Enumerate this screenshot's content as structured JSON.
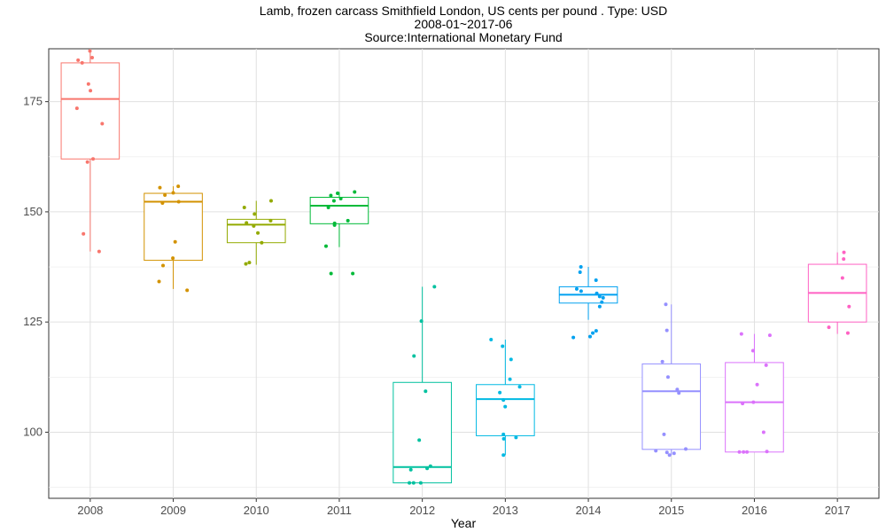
{
  "chart_data": {
    "type": "boxplot",
    "title_lines": [
      "Lamb, frozen carcass Smithfield London, US cents per pound . Type: USD",
      "2008-01~2017-06",
      "Source:International Monetary Fund"
    ],
    "xlabel": "Year",
    "ylabel": "",
    "ylim": [
      85,
      187
    ],
    "y_ticks": [
      100,
      125,
      150,
      175
    ],
    "grid": true,
    "categories": [
      "2008",
      "2009",
      "2010",
      "2011",
      "2012",
      "2013",
      "2014",
      "2015",
      "2016",
      "2017"
    ],
    "colors": [
      "#F8766D",
      "#D39200",
      "#93AA00",
      "#00BA38",
      "#00C19F",
      "#00B9E3",
      "#00A1F0",
      "#9590FF",
      "#DB72FB",
      "#FF61C3"
    ],
    "boxes": [
      {
        "year": "2008",
        "min": 141,
        "q1": 162,
        "median": 175.6,
        "q3": 183.8,
        "max": 186.5
      },
      {
        "year": "2009",
        "min": 132.5,
        "q1": 139,
        "median": 152.3,
        "q3": 154.2,
        "max": 155.8
      },
      {
        "year": "2010",
        "min": 138,
        "q1": 143,
        "median": 147.1,
        "q3": 148.3,
        "max": 152.5
      },
      {
        "year": "2011",
        "min": 142,
        "q1": 147.3,
        "median": 151.4,
        "q3": 153.3,
        "max": 154.5
      },
      {
        "year": "2012",
        "min": 88.5,
        "q1": 88.5,
        "median": 92.1,
        "q3": 111.3,
        "max": 133
      },
      {
        "year": "2013",
        "min": 94.8,
        "q1": 99.2,
        "median": 107.5,
        "q3": 110.8,
        "max": 121
      },
      {
        "year": "2014",
        "min": 125.5,
        "q1": 129.3,
        "median": 131.2,
        "q3": 133,
        "max": 137.5
      },
      {
        "year": "2015",
        "min": 94.8,
        "q1": 96.1,
        "median": 109.3,
        "q3": 115.5,
        "max": 129
      },
      {
        "year": "2016",
        "min": 95.5,
        "q1": 95.5,
        "median": 106.8,
        "q3": 115.8,
        "max": 122.3
      },
      {
        "year": "2017",
        "min": 122.3,
        "q1": 125,
        "median": 131.6,
        "q3": 138.1,
        "max": 140.8
      }
    ],
    "points": [
      [
        186.5,
        185,
        184.4,
        183.8,
        179,
        177.5,
        173.5,
        170,
        162,
        161.3,
        145,
        141
      ],
      [
        155.8,
        155.5,
        154.3,
        153.8,
        152.3,
        152,
        143.2,
        139.5,
        137.8,
        134.2,
        132.2
      ],
      [
        152.5,
        151,
        149.5,
        148,
        147.5,
        146.8,
        145.2,
        143,
        138.5,
        138.2
      ],
      [
        154.5,
        154.2,
        153.7,
        153,
        152.5,
        151,
        148,
        147.4,
        147,
        142.2,
        136,
        136
      ],
      [
        133,
        125.2,
        117.3,
        109.3,
        98.2,
        92.3,
        91.8,
        91.5,
        88.5,
        88.5,
        88.5
      ],
      [
        121,
        119.5,
        116.5,
        112,
        110.3,
        109,
        107.3,
        105.8,
        99.5,
        98.8,
        98.5,
        94.8
      ],
      [
        137.5,
        136.3,
        134.5,
        132.5,
        132,
        131.5,
        130.8,
        130.5,
        129.5,
        128.5,
        123,
        122.5,
        121.7,
        121.5
      ],
      [
        129,
        123.1,
        116,
        112.5,
        109.7,
        108.9,
        99.5,
        96.2,
        95.8,
        95.4,
        95.2,
        94.8
      ],
      [
        122.3,
        122,
        118.5,
        115.2,
        110.8,
        106.8,
        106.5,
        100,
        95.6,
        95.5,
        95.5,
        95.5
      ],
      [
        140.8,
        139.3,
        135,
        128.5,
        123.8,
        122.5
      ]
    ]
  }
}
